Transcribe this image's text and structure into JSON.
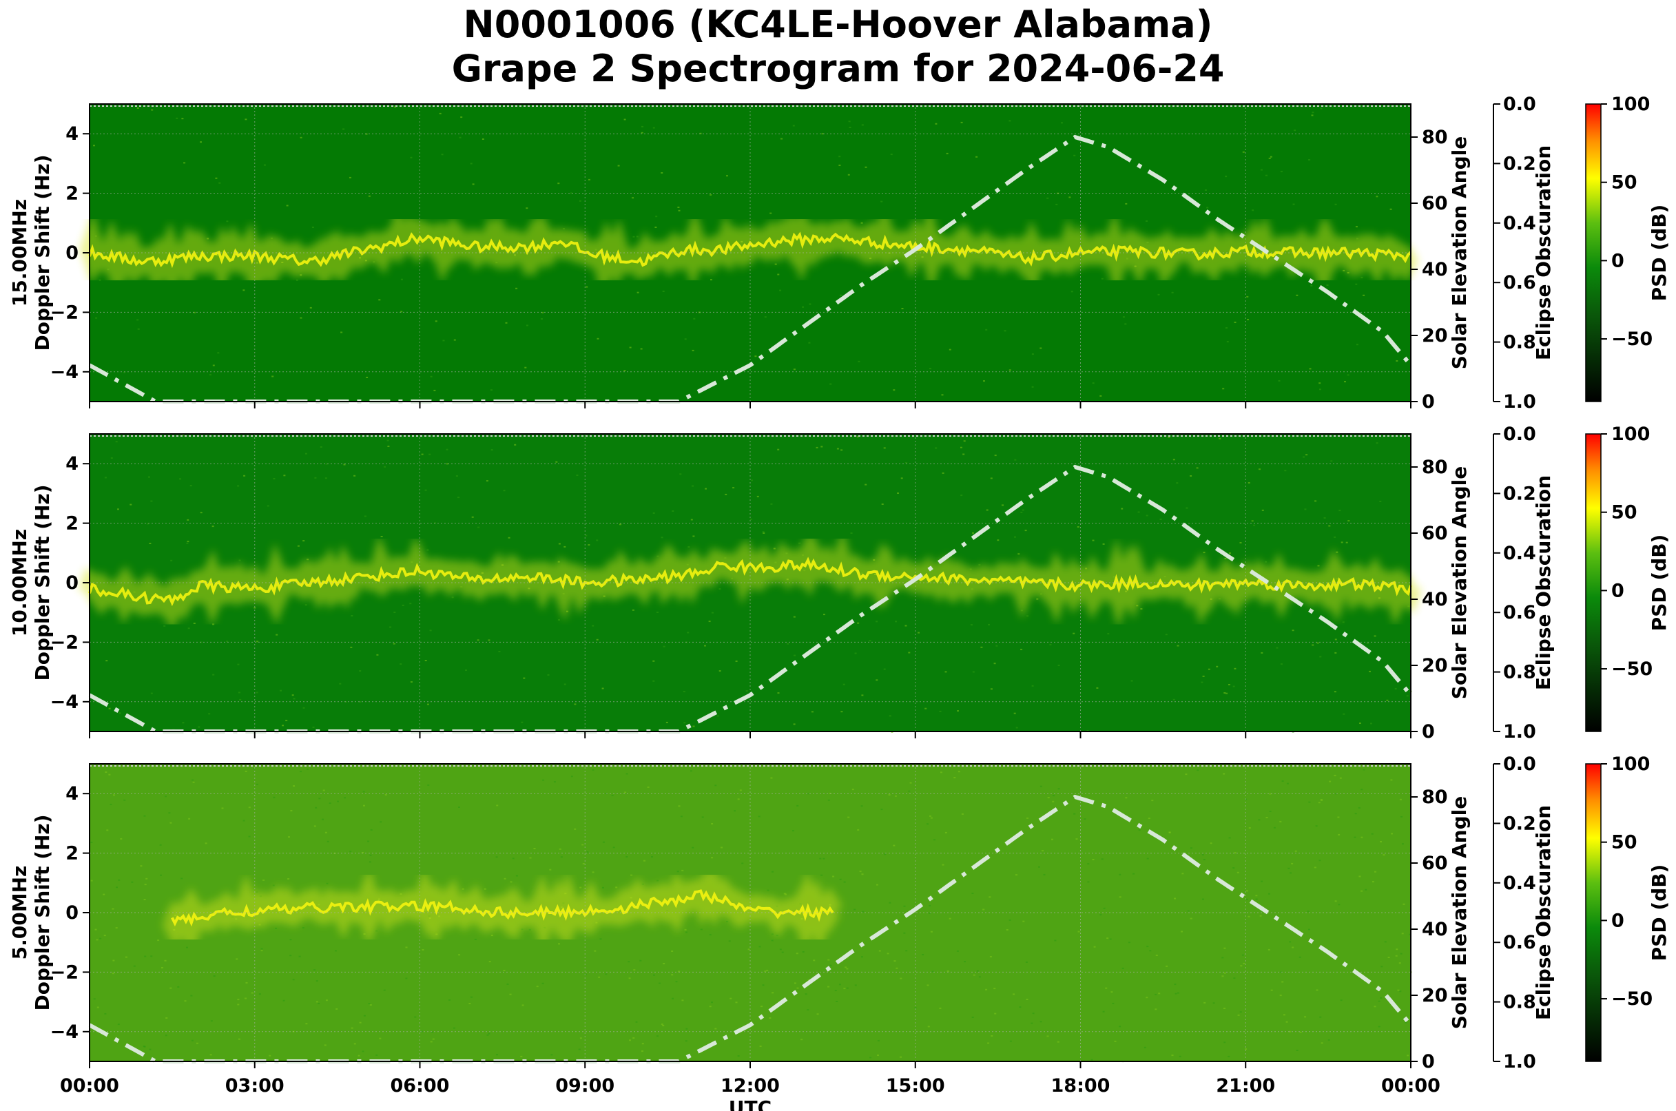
{
  "title_line1": "N0001006 (KC4LE-Hoover Alabama)",
  "title_line2": "Grape 2 Spectrogram for 2024-06-24",
  "chart_data": {
    "type": "heatmap",
    "xlabel": "UTC",
    "x_ticks": [
      "00:00",
      "03:00",
      "06:00",
      "09:00",
      "12:00",
      "15:00",
      "18:00",
      "21:00",
      "00:00"
    ],
    "xlim_hours": [
      0,
      24
    ],
    "ylabel": "Doppler Shift (Hz)",
    "ylim": [
      -5,
      5
    ],
    "y_ticks": [
      4,
      2,
      0,
      -2,
      -4
    ],
    "y_tick_labels": [
      "4",
      "2",
      "0",
      "−2",
      "−4"
    ],
    "right_axis_1": {
      "label": "Solar Elevation Angle",
      "ylim": [
        0,
        90
      ],
      "ticks": [
        "0",
        "20",
        "40",
        "60",
        "80"
      ]
    },
    "right_axis_2": {
      "label": "Eclipse Obscuration",
      "ylim": [
        1.0,
        0.0
      ],
      "ticks": [
        "0.0",
        "0.2",
        "0.4",
        "0.6",
        "0.8",
        "1.0"
      ]
    },
    "colorbar": {
      "label": "PSD (dB)",
      "range": [
        -90,
        100
      ],
      "ticks": [
        100,
        50,
        0,
        -50
      ],
      "tick_labels": [
        "100",
        "50",
        "0",
        "−50"
      ]
    },
    "solar_elevation": {
      "style": "dash-dot",
      "color": "#d8e8d8",
      "points": [
        [
          0,
          11
        ],
        [
          1.2,
          0
        ],
        [
          10.7,
          0
        ],
        [
          12,
          11
        ],
        [
          13,
          23
        ],
        [
          14,
          35
        ],
        [
          15,
          46
        ],
        [
          16,
          58
        ],
        [
          17,
          70
        ],
        [
          17.9,
          80
        ],
        [
          18.5,
          77
        ],
        [
          19.5,
          67
        ],
        [
          20.5,
          55
        ],
        [
          21.5,
          44
        ],
        [
          22.5,
          33
        ],
        [
          23.5,
          21
        ],
        [
          24,
          11
        ]
      ]
    },
    "panels": [
      {
        "frequency": "15.00MHz",
        "background": "#047a04",
        "signal": [
          [
            0,
            0
          ],
          [
            1,
            -0.3
          ],
          [
            2,
            -0.1
          ],
          [
            3,
            -0.1
          ],
          [
            4,
            -0.3
          ],
          [
            5,
            0.1
          ],
          [
            6,
            0.5
          ],
          [
            7,
            0.2
          ],
          [
            7.6,
            0.2
          ],
          [
            8,
            0.2
          ],
          [
            8.6,
            0.4
          ],
          [
            9,
            0
          ],
          [
            10,
            -0.3
          ],
          [
            10.8,
            0.1
          ],
          [
            11.5,
            0.1
          ],
          [
            12.5,
            0.4
          ],
          [
            13.5,
            0.5
          ],
          [
            14.5,
            0.3
          ],
          [
            15,
            0.2
          ],
          [
            16,
            0.1
          ],
          [
            17,
            -0.2
          ],
          [
            18,
            0
          ],
          [
            19,
            0.05
          ],
          [
            20,
            -0.05
          ],
          [
            21,
            0.05
          ],
          [
            22,
            0
          ],
          [
            23,
            0
          ],
          [
            24,
            -0.1
          ]
        ],
        "noise_level": 0.25
      },
      {
        "frequency": "10.00MHz",
        "background": "#087d08",
        "signal": [
          [
            0,
            -0.2
          ],
          [
            1,
            -0.5
          ],
          [
            1.5,
            -0.6
          ],
          [
            2,
            -0.1
          ],
          [
            3,
            -0.2
          ],
          [
            4,
            0
          ],
          [
            5,
            0.2
          ],
          [
            6,
            0.4
          ],
          [
            7,
            0.1
          ],
          [
            8,
            0.2
          ],
          [
            9,
            0
          ],
          [
            10,
            0.1
          ],
          [
            11,
            0.3
          ],
          [
            11.5,
            0.6
          ],
          [
            12,
            0.5
          ],
          [
            13,
            0.6
          ],
          [
            14,
            0.3
          ],
          [
            15,
            0.2
          ],
          [
            16,
            0.1
          ],
          [
            17,
            0
          ],
          [
            18,
            -0.1
          ],
          [
            19,
            0
          ],
          [
            20,
            -0.1
          ],
          [
            21,
            0
          ],
          [
            22,
            -0.1
          ],
          [
            23,
            -0.05
          ],
          [
            24,
            -0.2
          ]
        ],
        "noise_level": 0.4
      },
      {
        "frequency": "5.00MHz",
        "background": "#4fa414",
        "signal": [
          [
            1.5,
            -0.3
          ],
          [
            2.5,
            0
          ],
          [
            3.5,
            0.1
          ],
          [
            4.5,
            0.2
          ],
          [
            5.5,
            0.2
          ],
          [
            6.5,
            0.2
          ],
          [
            7.5,
            0
          ],
          [
            8.5,
            0
          ],
          [
            9.5,
            0.1
          ],
          [
            10.5,
            0.4
          ],
          [
            11.2,
            0.6
          ],
          [
            12,
            0.05
          ],
          [
            13.5,
            0
          ]
        ],
        "noise_level": 0.7
      }
    ]
  }
}
